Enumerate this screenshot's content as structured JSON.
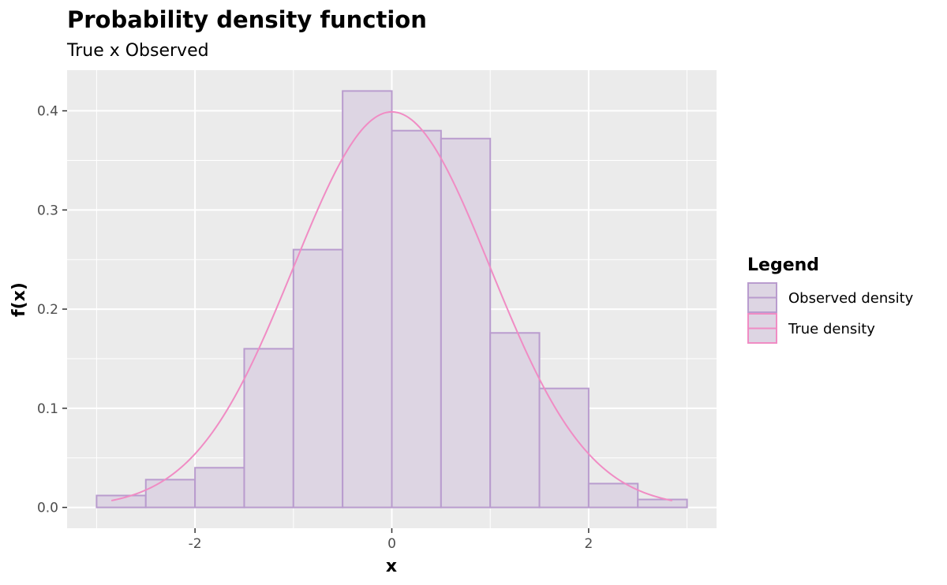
{
  "chart_data": {
    "type": "bar",
    "title": "Probability density function",
    "subtitle": "True x Observed",
    "xlabel": "x",
    "ylabel": "f(x)",
    "xlim": [
      -3.3,
      3.3
    ],
    "ylim": [
      -0.021,
      0.441
    ],
    "x_ticks": [
      -2,
      0,
      2
    ],
    "x_tick_labels": [
      "-2",
      "0",
      "2"
    ],
    "y_ticks": [
      0.0,
      0.1,
      0.2,
      0.3,
      0.4
    ],
    "y_tick_labels": [
      "0.0",
      "0.1",
      "0.2",
      "0.3",
      "0.4"
    ],
    "grid": true,
    "legend_position": "right",
    "legend_title": "Legend",
    "histogram": {
      "name": "Observed density",
      "bin_edges": [
        -3.0,
        -2.5,
        -2.0,
        -1.5,
        -1.0,
        -0.5,
        0.0,
        0.5,
        1.0,
        1.5,
        2.0,
        2.5,
        3.0
      ],
      "values": [
        0.012,
        0.028,
        0.04,
        0.16,
        0.26,
        0.42,
        0.38,
        0.372,
        0.176,
        0.12,
        0.024,
        0.008
      ]
    },
    "curve": {
      "name": "True density",
      "distribution": "normal",
      "mean": 0,
      "sd": 1,
      "x_range": [
        -2.85,
        2.85
      ]
    },
    "colors": {
      "panel_background": "#ebebeb",
      "grid": "#ffffff",
      "bar_fill": "#ddd5e3",
      "bar_outline": "#b99cce",
      "curve": "#f08cc4",
      "legend_key_background": "#ddd5e3"
    }
  }
}
